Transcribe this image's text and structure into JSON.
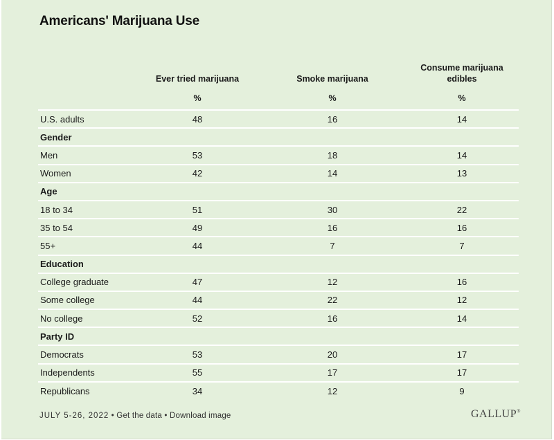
{
  "chart_data": {
    "type": "table",
    "title": "Americans' Marijuana Use",
    "columns": [
      {
        "label": "Ever tried marijuana",
        "unit": "%"
      },
      {
        "label": "Smoke marijuana",
        "unit": "%"
      },
      {
        "label": "Consume marijuana edibles",
        "unit": "%"
      }
    ],
    "rows": [
      {
        "label": "U.S. adults",
        "group": false,
        "values": [
          "48",
          "16",
          "14"
        ]
      },
      {
        "label": "Gender",
        "group": true,
        "values": [
          "",
          "",
          ""
        ]
      },
      {
        "label": "Men",
        "group": false,
        "values": [
          "53",
          "18",
          "14"
        ]
      },
      {
        "label": "Women",
        "group": false,
        "values": [
          "42",
          "14",
          "13"
        ]
      },
      {
        "label": "Age",
        "group": true,
        "values": [
          "",
          "",
          ""
        ]
      },
      {
        "label": "18 to 34",
        "group": false,
        "values": [
          "51",
          "30",
          "22"
        ]
      },
      {
        "label": "35 to 54",
        "group": false,
        "values": [
          "49",
          "16",
          "16"
        ]
      },
      {
        "label": "55+",
        "group": false,
        "values": [
          "44",
          "7",
          "7"
        ]
      },
      {
        "label": "Education",
        "group": true,
        "values": [
          "",
          "",
          ""
        ]
      },
      {
        "label": "College graduate",
        "group": false,
        "values": [
          "47",
          "12",
          "16"
        ]
      },
      {
        "label": "Some college",
        "group": false,
        "values": [
          "44",
          "22",
          "12"
        ]
      },
      {
        "label": "No college",
        "group": false,
        "values": [
          "52",
          "16",
          "14"
        ]
      },
      {
        "label": "Party ID",
        "group": true,
        "values": [
          "",
          "",
          ""
        ]
      },
      {
        "label": "Democrats",
        "group": false,
        "values": [
          "53",
          "20",
          "17"
        ]
      },
      {
        "label": "Independents",
        "group": false,
        "values": [
          "55",
          "17",
          "17"
        ]
      },
      {
        "label": "Republicans",
        "group": false,
        "values": [
          "34",
          "12",
          "9"
        ]
      }
    ]
  },
  "footer": {
    "date": "JULY 5-26, 2022",
    "links": [
      "Get the data",
      "Download image"
    ],
    "separator": "•"
  },
  "brand": {
    "logo_text": "GALLUP",
    "trademark": "®"
  },
  "colors": {
    "background": "#e4f0dc",
    "row_divider": "#ffffff",
    "text": "#1b1b1b"
  }
}
